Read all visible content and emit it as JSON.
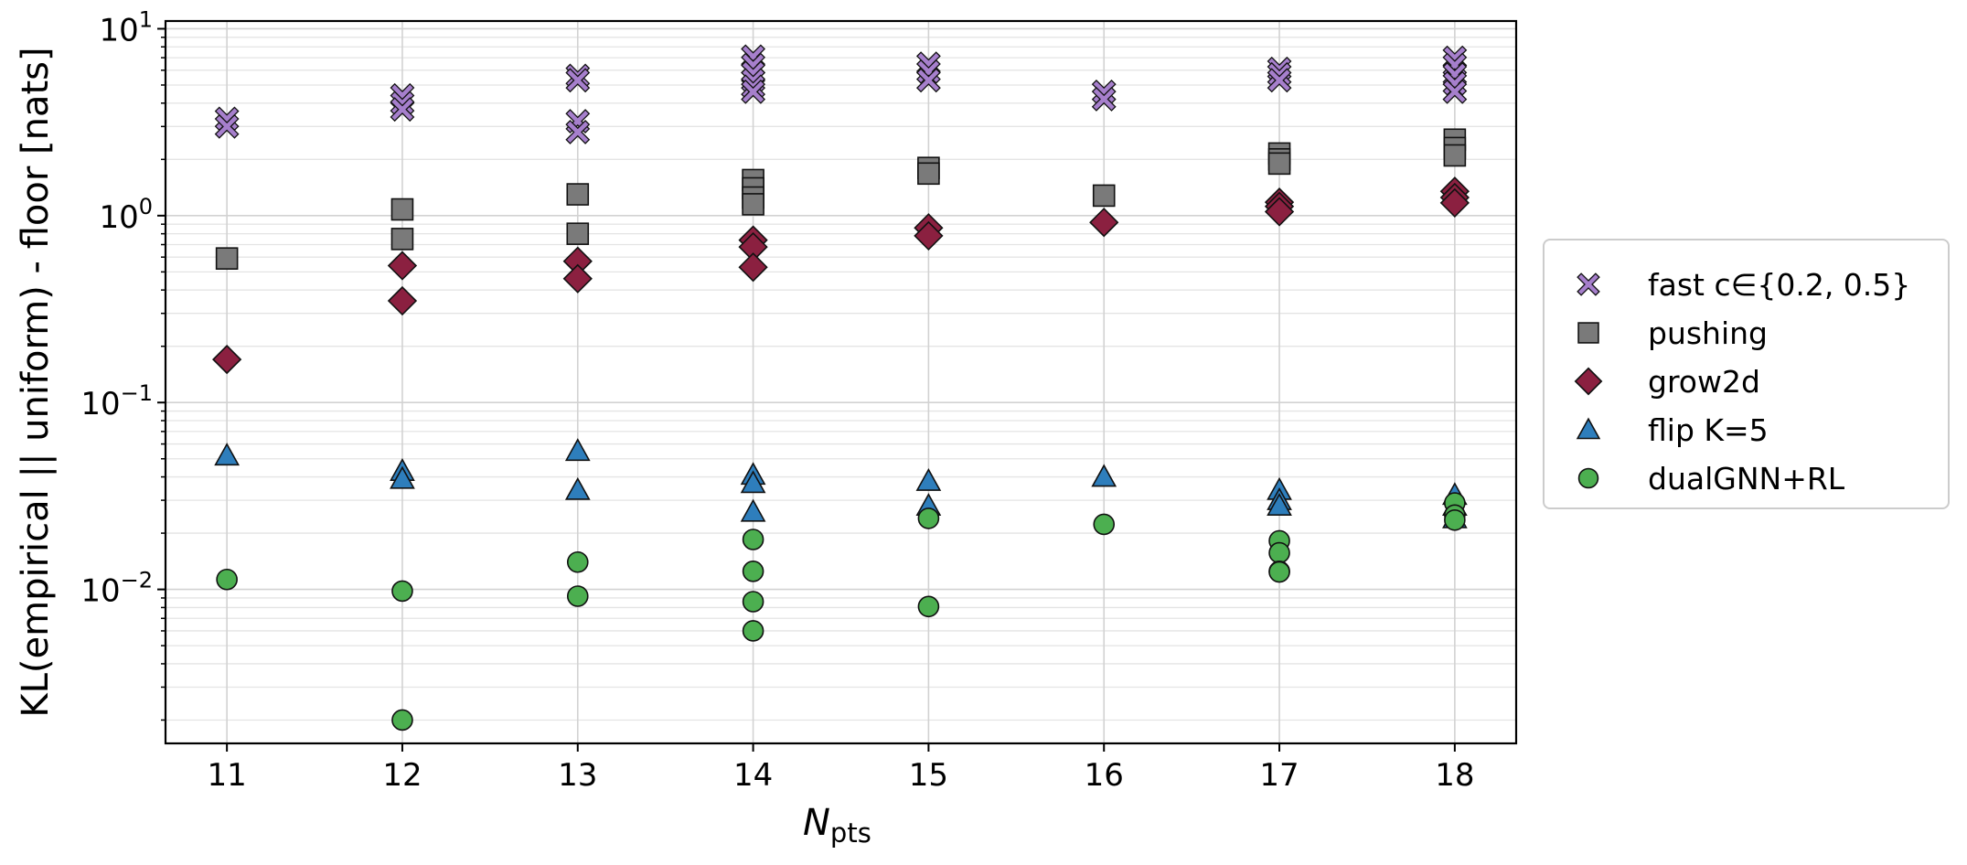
{
  "chart_data": {
    "type": "scatter",
    "title": "",
    "xlabel": {
      "main": "N",
      "sub": "pts"
    },
    "ylabel": "KL(empirical || uniform) - floor  [nats]",
    "yscale": "log",
    "ylim": [
      0.0015,
      11
    ],
    "xlim": [
      10.65,
      18.35
    ],
    "xticks": [
      "11",
      "12",
      "13",
      "14",
      "15",
      "16",
      "17",
      "18"
    ],
    "yticks": [
      {
        "value": 0.01,
        "base": "10",
        "exp": "−2"
      },
      {
        "value": 0.1,
        "base": "10",
        "exp": "−1"
      },
      {
        "value": 1,
        "base": "10",
        "exp": "0"
      },
      {
        "value": 10,
        "base": "10",
        "exp": "1"
      }
    ],
    "grid": true,
    "legend_position": "right-outside",
    "series": [
      {
        "name": "fast c∈{0.2, 0.5}",
        "marker": "x",
        "color": "#a67fcc",
        "points": [
          [
            11,
            3.3
          ],
          [
            11,
            3.0
          ],
          [
            12,
            4.4
          ],
          [
            12,
            4.0
          ],
          [
            12,
            3.7
          ],
          [
            13,
            5.6
          ],
          [
            13,
            5.3
          ],
          [
            13,
            3.2
          ],
          [
            13,
            2.8
          ],
          [
            14,
            7.1
          ],
          [
            14,
            6.4
          ],
          [
            14,
            5.8
          ],
          [
            14,
            5.3
          ],
          [
            14,
            4.9
          ],
          [
            14,
            4.6
          ],
          [
            15,
            6.5
          ],
          [
            15,
            5.9
          ],
          [
            15,
            5.3
          ],
          [
            16,
            4.6
          ],
          [
            16,
            4.2
          ],
          [
            17,
            6.1
          ],
          [
            17,
            5.7
          ],
          [
            17,
            5.3
          ],
          [
            18,
            7.0
          ],
          [
            18,
            6.4
          ],
          [
            18,
            5.7
          ],
          [
            18,
            5.1
          ],
          [
            18,
            4.6
          ]
        ]
      },
      {
        "name": "pushing",
        "marker": "square",
        "color": "#7a7a7a",
        "points": [
          [
            11,
            0.59
          ],
          [
            12,
            1.08
          ],
          [
            12,
            0.75
          ],
          [
            13,
            1.3
          ],
          [
            13,
            0.8
          ],
          [
            14,
            1.55
          ],
          [
            14,
            1.4
          ],
          [
            14,
            1.25
          ],
          [
            14,
            1.15
          ],
          [
            15,
            1.8
          ],
          [
            15,
            1.68
          ],
          [
            16,
            1.28
          ],
          [
            17,
            2.15
          ],
          [
            17,
            2.0
          ],
          [
            17,
            1.9
          ],
          [
            18,
            2.55
          ],
          [
            18,
            2.3
          ],
          [
            18,
            2.1
          ]
        ]
      },
      {
        "name": "grow2d",
        "marker": "diamond",
        "color": "#8b2040",
        "points": [
          [
            11,
            0.17
          ],
          [
            12,
            0.54
          ],
          [
            12,
            0.35
          ],
          [
            13,
            0.57
          ],
          [
            13,
            0.46
          ],
          [
            14,
            0.74
          ],
          [
            14,
            0.68
          ],
          [
            14,
            0.53
          ],
          [
            15,
            0.86
          ],
          [
            15,
            0.78
          ],
          [
            16,
            0.92
          ],
          [
            17,
            1.18
          ],
          [
            17,
            1.12
          ],
          [
            17,
            1.05
          ],
          [
            18,
            1.35
          ],
          [
            18,
            1.25
          ],
          [
            18,
            1.17
          ]
        ]
      },
      {
        "name": "flip K=5",
        "marker": "triangle",
        "color": "#2e7ebc",
        "points": [
          [
            11,
            0.052
          ],
          [
            12,
            0.043
          ],
          [
            12,
            0.039
          ],
          [
            13,
            0.055
          ],
          [
            13,
            0.034
          ],
          [
            14,
            0.041
          ],
          [
            14,
            0.037
          ],
          [
            14,
            0.026
          ],
          [
            15,
            0.038
          ],
          [
            15,
            0.028
          ],
          [
            16,
            0.04
          ],
          [
            17,
            0.034
          ],
          [
            17,
            0.03
          ],
          [
            17,
            0.028
          ],
          [
            18,
            0.032
          ],
          [
            18,
            0.028
          ],
          [
            18,
            0.024
          ]
        ]
      },
      {
        "name": "dualGNN+RL",
        "marker": "circle",
        "color": "#4caf50",
        "points": [
          [
            11,
            0.0113
          ],
          [
            12,
            0.0098
          ],
          [
            12,
            0.002
          ],
          [
            13,
            0.014
          ],
          [
            13,
            0.0092
          ],
          [
            14,
            0.0185
          ],
          [
            14,
            0.0125
          ],
          [
            14,
            0.0086
          ],
          [
            14,
            0.006
          ],
          [
            15,
            0.024
          ],
          [
            15,
            0.0081
          ],
          [
            16,
            0.0223
          ],
          [
            17,
            0.0182
          ],
          [
            17,
            0.0157
          ],
          [
            17,
            0.0125
          ],
          [
            17,
            0.0124
          ],
          [
            18,
            0.029
          ],
          [
            18,
            0.025
          ],
          [
            18,
            0.0235
          ]
        ]
      }
    ]
  }
}
